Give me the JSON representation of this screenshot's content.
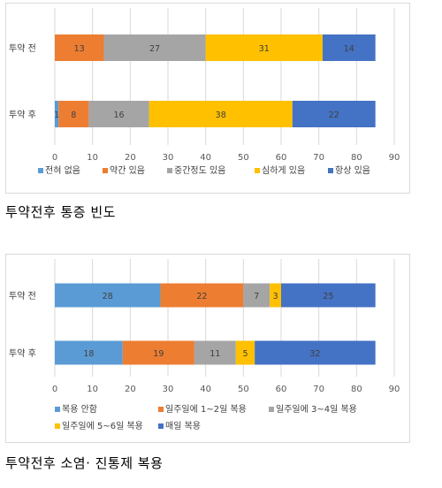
{
  "chart_data": [
    {
      "type": "bar",
      "orientation": "horizontal",
      "stacked": true,
      "categories": [
        "투약 전",
        "투약 후"
      ],
      "series": [
        {
          "name": "전혀 없음",
          "color": "#5B9BD5",
          "values": [
            0,
            1
          ]
        },
        {
          "name": "약간 있음",
          "color": "#ED7D31",
          "values": [
            13,
            8
          ]
        },
        {
          "name": "중간정도 있음",
          "color": "#A5A5A5",
          "values": [
            27,
            16
          ]
        },
        {
          "name": "심하게 있음",
          "color": "#FFC000",
          "values": [
            31,
            38
          ]
        },
        {
          "name": "항상 있음",
          "color": "#4472C4",
          "values": [
            14,
            22
          ]
        }
      ],
      "xlim": [
        0,
        90
      ],
      "xticks": [
        0,
        10,
        20,
        30,
        40,
        50,
        60,
        70,
        80,
        90
      ],
      "grid": "vertical",
      "legend": "bottom"
    },
    {
      "type": "bar",
      "orientation": "horizontal",
      "stacked": true,
      "categories": [
        "투약 전",
        "투약 후"
      ],
      "series": [
        {
          "name": "복용 안함",
          "color": "#5B9BD5",
          "values": [
            28,
            18
          ]
        },
        {
          "name": "일주일에 1~2일 복용",
          "color": "#ED7D31",
          "values": [
            22,
            19
          ]
        },
        {
          "name": "일주일에 3~4일 복용",
          "color": "#A5A5A5",
          "values": [
            7,
            11
          ]
        },
        {
          "name": "일주일에 5~6일 복용",
          "color": "#FFC000",
          "values": [
            3,
            5
          ]
        },
        {
          "name": "매일 복용",
          "color": "#4472C4",
          "values": [
            25,
            32
          ]
        }
      ],
      "xlim": [
        0,
        90
      ],
      "xticks": [
        0,
        10,
        20,
        30,
        40,
        50,
        60,
        70,
        80,
        90
      ],
      "grid": "vertical",
      "legend": "bottom"
    }
  ],
  "captions": [
    "투약전후 통증 빈도",
    "투약전후 소염· 진통제 복용"
  ]
}
